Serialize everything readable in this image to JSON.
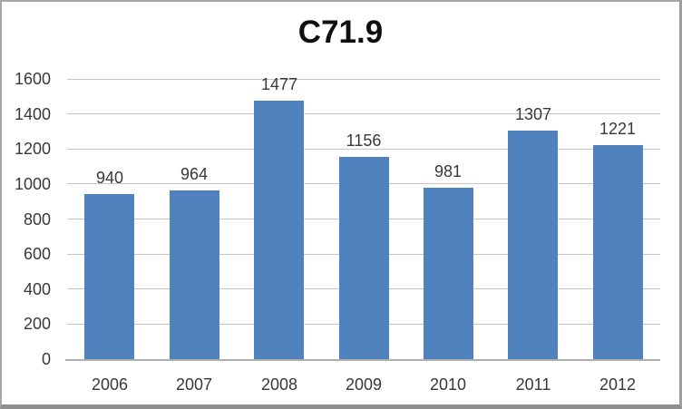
{
  "chart_data": {
    "type": "bar",
    "title": "C71.9",
    "categories": [
      "2006",
      "2007",
      "2008",
      "2009",
      "2010",
      "2011",
      "2012"
    ],
    "values": [
      940,
      964,
      1477,
      1156,
      981,
      1307,
      1221
    ],
    "data_labels_shown": true,
    "xlabel": "",
    "ylabel": "",
    "ylim": [
      0,
      1600
    ],
    "ytick_step": 200,
    "yticks": [
      0,
      200,
      400,
      600,
      800,
      1000,
      1200,
      1400,
      1600
    ],
    "grid": true,
    "legend": "none",
    "bar_color": "#4f81bd",
    "gridline_color": "#c4c4c4",
    "axis_line_color": "#aeaeae",
    "label_color": "#383838",
    "title_color": "#0f0f0f",
    "background_color": "#ffffff",
    "border_color": "#a6a6a6"
  }
}
